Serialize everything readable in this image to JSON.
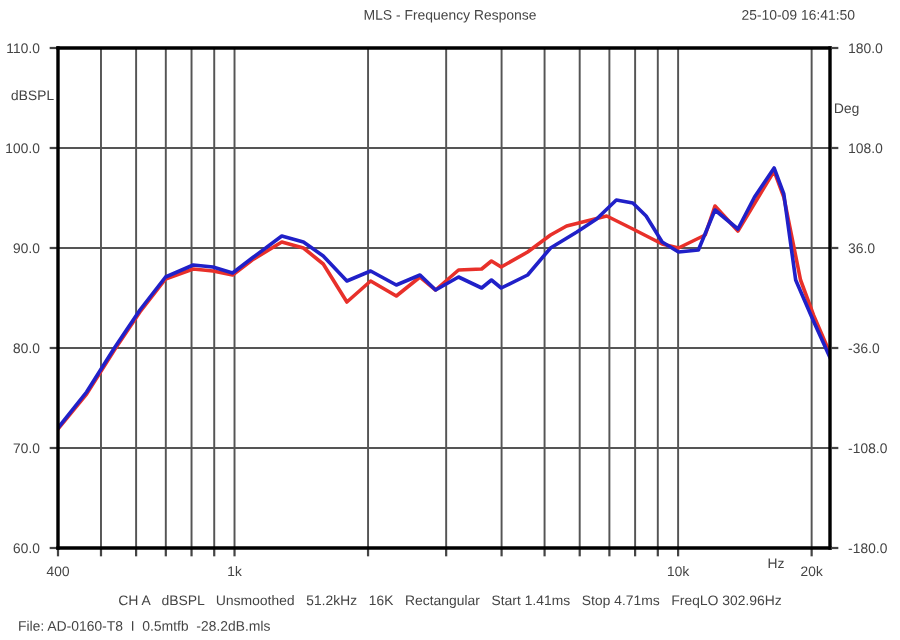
{
  "chart_data": {
    "type": "line",
    "title": "MLS - Frequency Response",
    "xlabel": "Hz",
    "ylabel": "dBSPL",
    "y2label": "Deg",
    "log": "x",
    "xlim": [
      400,
      22000
    ],
    "xticks": [
      {
        "value": 400,
        "label": "400"
      },
      {
        "value": 500,
        "label": null
      },
      {
        "value": 600,
        "label": null
      },
      {
        "value": 700,
        "label": null
      },
      {
        "value": 800,
        "label": null
      },
      {
        "value": 900,
        "label": null
      },
      {
        "value": 1000,
        "label": "1k"
      },
      {
        "value": 2000,
        "label": null
      },
      {
        "value": 3000,
        "label": null
      },
      {
        "value": 4000,
        "label": null
      },
      {
        "value": 5000,
        "label": null
      },
      {
        "value": 6000,
        "label": null
      },
      {
        "value": 7000,
        "label": null
      },
      {
        "value": 8000,
        "label": null
      },
      {
        "value": 9000,
        "label": null
      },
      {
        "value": 10000,
        "label": "10k"
      },
      {
        "value": 20000,
        "label": "20k"
      }
    ],
    "ylim": [
      60,
      110
    ],
    "yticks": [
      {
        "value": 60,
        "label": "60.0"
      },
      {
        "value": 70,
        "label": "70.0"
      },
      {
        "value": 80,
        "label": "80.0"
      },
      {
        "value": 90,
        "label": "90.0"
      },
      {
        "value": 100,
        "label": "100.0"
      },
      {
        "value": 110,
        "label": "110.0"
      }
    ],
    "y2lim": [
      -180,
      180
    ],
    "y2ticks": [
      {
        "value": -180,
        "label": "-180.0"
      },
      {
        "value": -108,
        "label": "-108.0"
      },
      {
        "value": -36,
        "label": "-36.0"
      },
      {
        "value": 36,
        "label": "36.0"
      },
      {
        "value": 108,
        "label": "108.0"
      },
      {
        "value": 180,
        "label": "180.0"
      }
    ],
    "grid": true,
    "line_style": "solid",
    "annotations": [
      "25-10-09 16:41:50",
      "CH A   dBSPL   Unsmoothed   51.2kHz   16K   Rectangular   Start 1.41ms   Stop 4.71ms   FreqLO 302.96Hz",
      "File: AD-0160-T8  I  0.5mtfb  -28.2dB.mls"
    ],
    "series": [
      {
        "color": "#e8302a",
        "x": [
          400,
          464,
          536,
          612,
          699,
          807,
          894,
          990,
          1096,
          1278,
          1430,
          1585,
          1792,
          2027,
          2316,
          2619,
          2840,
          3199,
          3607,
          3795,
          3992,
          4579,
          5157,
          5606,
          6903,
          7906,
          9205,
          10020,
          11510,
          12110,
          13640,
          16460,
          17310,
          18880,
          20190,
          21980
        ],
        "values": [
          71.9,
          75.4,
          79.8,
          83.6,
          86.9,
          87.9,
          87.7,
          87.3,
          88.8,
          90.6,
          90.0,
          88.4,
          84.6,
          86.7,
          85.2,
          87.1,
          85.8,
          87.8,
          87.9,
          88.7,
          88.1,
          89.6,
          91.3,
          92.2,
          93.2,
          91.9,
          90.4,
          90.0,
          91.3,
          94.2,
          91.7,
          97.7,
          95.1,
          86.8,
          83.3,
          79.5
        ]
      },
      {
        "color": "#2020c8",
        "x": [
          400,
          464,
          536,
          612,
          699,
          807,
          894,
          990,
          1096,
          1278,
          1430,
          1585,
          1792,
          2027,
          2316,
          2619,
          2840,
          3199,
          3607,
          3795,
          3992,
          4579,
          5157,
          5912,
          6551,
          7256,
          7906,
          8470,
          9205,
          10020,
          11110,
          12110,
          13640,
          14870,
          16460,
          17310,
          18410,
          20190,
          21980
        ],
        "values": [
          72.0,
          75.6,
          80.0,
          83.8,
          87.1,
          88.3,
          88.1,
          87.5,
          89.0,
          91.2,
          90.6,
          89.2,
          86.7,
          87.7,
          86.3,
          87.3,
          85.8,
          87.1,
          86.0,
          86.8,
          86.0,
          87.3,
          90.0,
          91.6,
          92.9,
          94.8,
          94.5,
          93.2,
          90.6,
          89.6,
          89.8,
          93.8,
          91.9,
          95.1,
          98.0,
          95.4,
          86.8,
          82.7,
          79.1
        ]
      }
    ]
  }
}
